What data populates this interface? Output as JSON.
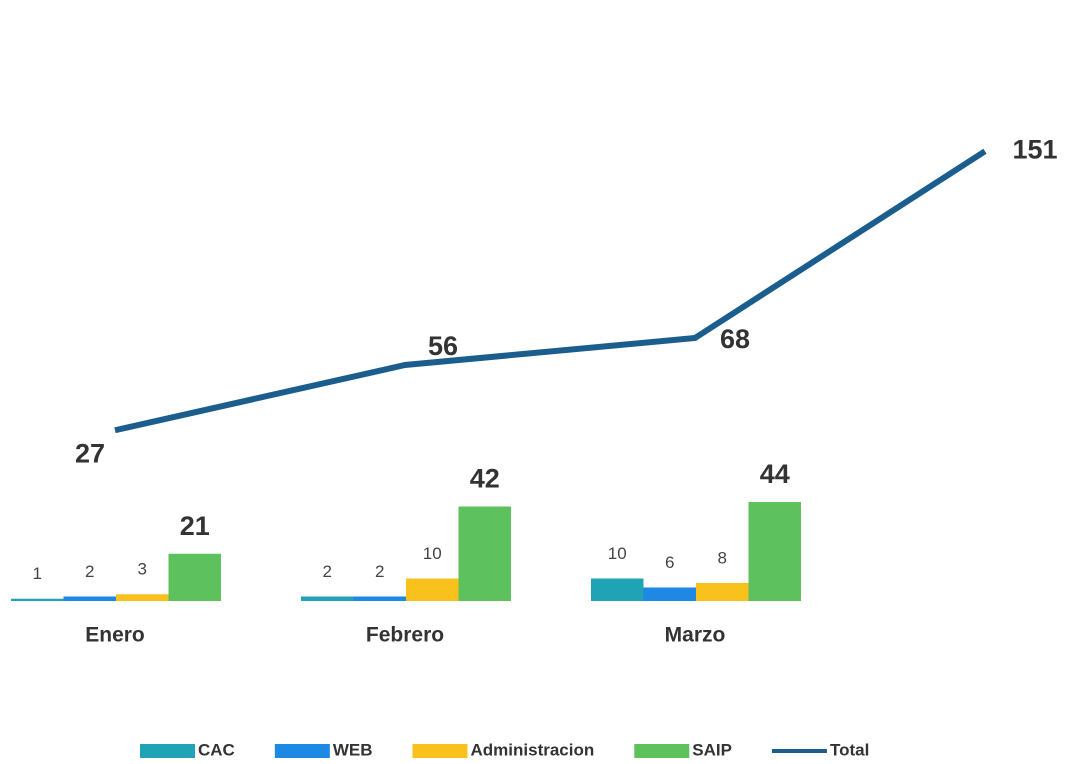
{
  "chart_data": {
    "type": "bar-line",
    "categories": [
      "Enero",
      "Febrero",
      "Marzo",
      null
    ],
    "series": [
      {
        "name": "CAC",
        "color": "#1fa3b5",
        "values": [
          1,
          2,
          10,
          null
        ]
      },
      {
        "name": "WEB",
        "color": "#1e88e5",
        "values": [
          2,
          2,
          6,
          null
        ]
      },
      {
        "name": "Administracion",
        "color": "#f9c11c",
        "values": [
          3,
          10,
          8,
          null
        ]
      },
      {
        "name": "SAIP",
        "color": "#5dc15d",
        "values": [
          21,
          42,
          44,
          null
        ]
      },
      {
        "name": "Total",
        "color": "#1b5e8e",
        "type": "line",
        "values": [
          27,
          56,
          68,
          151
        ]
      }
    ],
    "ylim": [
      0,
      160
    ]
  }
}
